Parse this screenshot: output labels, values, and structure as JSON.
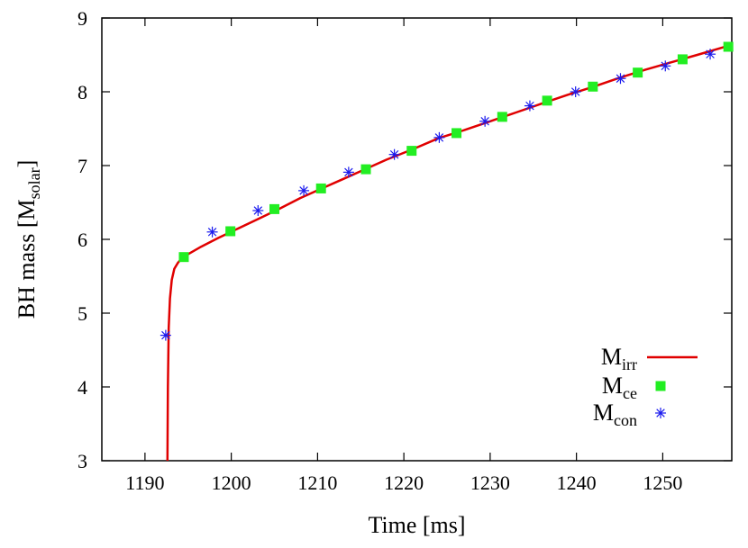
{
  "chart_data": {
    "type": "line",
    "xlabel": "Time [ms]",
    "ylabel_main": "BH mass [M",
    "ylabel_sub": "solar",
    "ylabel_end": "]",
    "xlim": [
      1185,
      1258
    ],
    "ylim": [
      3,
      9
    ],
    "x_ticks": [
      1190,
      1200,
      1210,
      1220,
      1230,
      1240,
      1250
    ],
    "y_ticks": [
      3,
      4,
      5,
      6,
      7,
      8,
      9
    ],
    "grid": false,
    "legend_position": "bottom-right",
    "series": [
      {
        "name": "M",
        "name_sub": "irr",
        "style": "line",
        "color": "#e00000",
        "x": [
          1192.6,
          1192.65,
          1192.75,
          1192.9,
          1193.1,
          1193.4,
          1193.8,
          1194.3,
          1195.0,
          1196.5,
          1198.5,
          1200.5,
          1203.0,
          1205.5,
          1208.0,
          1210.5,
          1213.0,
          1215.5,
          1218.0,
          1221.0,
          1224.0,
          1227.0,
          1230.0,
          1233.0,
          1236.0,
          1239.0,
          1242.0,
          1245.0,
          1248.0,
          1251.0,
          1254.0,
          1257.5
        ],
        "y": [
          3.0,
          4.0,
          4.8,
          5.2,
          5.45,
          5.6,
          5.68,
          5.75,
          5.8,
          5.9,
          6.02,
          6.13,
          6.27,
          6.41,
          6.56,
          6.69,
          6.82,
          6.95,
          7.08,
          7.22,
          7.37,
          7.48,
          7.6,
          7.72,
          7.84,
          7.96,
          8.07,
          8.19,
          8.3,
          8.4,
          8.5,
          8.62
        ]
      },
      {
        "name": "M",
        "name_sub": "ce",
        "style": "square",
        "color": "#22ee22",
        "x": [
          1194.5,
          1199.9,
          1205.0,
          1210.4,
          1215.6,
          1220.9,
          1226.1,
          1231.4,
          1236.6,
          1241.9,
          1247.1,
          1252.3,
          1257.6
        ],
        "y": [
          5.76,
          6.11,
          6.41,
          6.69,
          6.95,
          7.2,
          7.44,
          7.66,
          7.88,
          8.07,
          8.26,
          8.44,
          8.61
        ]
      },
      {
        "name": "M",
        "name_sub": "con",
        "style": "star",
        "color": "#1a1aee",
        "x": [
          1192.4,
          1197.8,
          1203.1,
          1208.4,
          1213.6,
          1218.9,
          1224.1,
          1229.4,
          1234.6,
          1239.9,
          1245.1,
          1250.3,
          1255.5
        ],
        "y": [
          4.7,
          6.1,
          6.39,
          6.66,
          6.91,
          7.15,
          7.38,
          7.6,
          7.81,
          8.0,
          8.18,
          8.35,
          8.51
        ]
      }
    ]
  }
}
